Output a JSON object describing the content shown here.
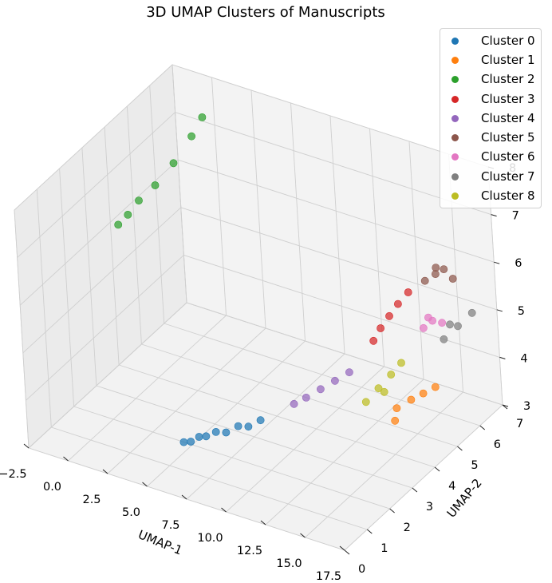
{
  "chart_data": {
    "type": "scatter",
    "title": "3D UMAP Clusters of Manuscripts",
    "xlabel": "UMAP-1",
    "ylabel": "UMAP-2",
    "zlabel": "",
    "xlim": [
      -2.5,
      17.5
    ],
    "ylim": [
      0,
      7
    ],
    "zlim": [
      3,
      8
    ],
    "x_ticks": [
      "−2.5",
      "0.0",
      "2.5",
      "5.0",
      "7.5",
      "10.0",
      "12.5",
      "15.0",
      "17.5"
    ],
    "y_ticks": [
      "0",
      "1",
      "2",
      "3",
      "4",
      "5",
      "6",
      "7"
    ],
    "z_ticks": [
      "3",
      "4",
      "5",
      "6",
      "7",
      "8"
    ],
    "grid": true,
    "legend_position": "top-right",
    "series": [
      {
        "name": "Cluster 0",
        "color": "#1f77b4",
        "points": [
          [
            6.0,
            1.0,
            3.6
          ],
          [
            6.3,
            1.1,
            3.6
          ],
          [
            6.7,
            1.2,
            3.7
          ],
          [
            7.0,
            1.3,
            3.7
          ],
          [
            7.5,
            1.4,
            3.8
          ],
          [
            8.0,
            1.5,
            3.8
          ],
          [
            8.5,
            1.7,
            3.9
          ],
          [
            9.0,
            1.8,
            3.9
          ],
          [
            9.5,
            2.0,
            4.0
          ]
        ]
      },
      {
        "name": "Cluster 1",
        "color": "#ff7f0e",
        "points": [
          [
            14.5,
            4.5,
            3.7
          ],
          [
            15.0,
            4.8,
            3.8
          ],
          [
            15.5,
            5.0,
            3.9
          ],
          [
            16.0,
            5.2,
            4.0
          ],
          [
            14.8,
            4.2,
            3.6
          ]
        ]
      },
      {
        "name": "Cluster 2",
        "color": "#2ca02c",
        "points": [
          [
            -2.0,
            4.0,
            6.0
          ],
          [
            -1.8,
            4.3,
            6.1
          ],
          [
            -1.5,
            4.6,
            6.3
          ],
          [
            -1.0,
            5.0,
            6.5
          ],
          [
            -0.5,
            5.5,
            6.8
          ],
          [
            0.0,
            6.0,
            7.2
          ],
          [
            0.3,
            6.3,
            7.5
          ]
        ]
      },
      {
        "name": "Cluster 3",
        "color": "#d62728",
        "points": [
          [
            13.0,
            5.0,
            5.0
          ],
          [
            13.3,
            5.2,
            5.2
          ],
          [
            13.6,
            5.4,
            5.4
          ],
          [
            14.0,
            5.6,
            5.6
          ],
          [
            12.8,
            4.8,
            4.8
          ]
        ]
      },
      {
        "name": "Cluster 4",
        "color": "#9467bd",
        "points": [
          [
            10.5,
            2.8,
            4.1
          ],
          [
            11.0,
            3.0,
            4.2
          ],
          [
            11.5,
            3.3,
            4.3
          ],
          [
            12.0,
            3.6,
            4.4
          ],
          [
            12.5,
            3.9,
            4.5
          ]
        ]
      },
      {
        "name": "Cluster 5",
        "color": "#8c564b",
        "points": [
          [
            14.2,
            6.2,
            5.6
          ],
          [
            14.6,
            6.4,
            5.7
          ],
          [
            15.0,
            6.5,
            5.8
          ],
          [
            15.4,
            6.6,
            5.6
          ],
          [
            14.8,
            6.3,
            5.9
          ]
        ]
      },
      {
        "name": "Cluster 6",
        "color": "#e377c2",
        "points": [
          [
            15.0,
            5.5,
            5.0
          ],
          [
            15.3,
            5.7,
            5.1
          ],
          [
            15.6,
            5.9,
            5.0
          ],
          [
            15.2,
            5.6,
            5.2
          ]
        ]
      },
      {
        "name": "Cluster 7",
        "color": "#7f7f7f",
        "points": [
          [
            15.5,
            6.0,
            4.6
          ],
          [
            16.0,
            6.3,
            4.8
          ],
          [
            16.5,
            6.6,
            5.0
          ],
          [
            15.8,
            6.1,
            4.9
          ]
        ]
      },
      {
        "name": "Cluster 8",
        "color": "#bcbd22",
        "points": [
          [
            13.0,
            4.2,
            3.8
          ],
          [
            13.4,
            4.5,
            4.0
          ],
          [
            13.8,
            4.8,
            4.2
          ],
          [
            14.2,
            5.0,
            4.4
          ],
          [
            13.6,
            4.6,
            3.9
          ]
        ]
      }
    ]
  }
}
